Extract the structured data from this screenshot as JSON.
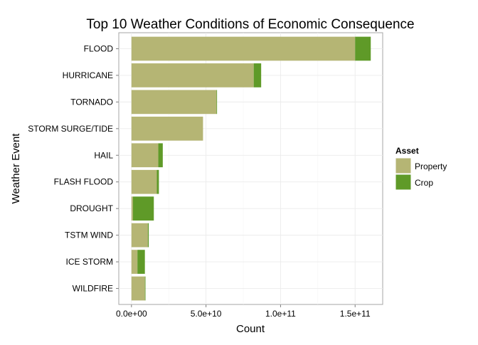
{
  "chart_data": {
    "type": "bar",
    "orientation": "horizontal",
    "stacked": true,
    "title": "Top 10 Weather Conditions of Economic Consequence",
    "xlabel": "Count",
    "ylabel": "Weather Event",
    "categories": [
      "FLOOD",
      "HURRICANE",
      "TORNADO",
      "STORM SURGE/TIDE",
      "HAIL",
      "FLASH FLOOD",
      "DROUGHT",
      "TSTM WIND",
      "ICE STORM",
      "WILDFIRE"
    ],
    "series": [
      {
        "name": "Property",
        "color": "#b5b574",
        "values": [
          150000000000.0,
          82000000000.0,
          57000000000.0,
          48000000000.0,
          18000000000.0,
          17000000000.0,
          1000000000.0,
          11000000000.0,
          4000000000.0,
          9000000000.0
        ]
      },
      {
        "name": "Crop",
        "color": "#5f9a28",
        "values": [
          10500000000.0,
          5000000000.0,
          400000000.0,
          100000.0,
          3000000000.0,
          1400000000.0,
          14000000000.0,
          600000000.0,
          5000000000.0,
          400000000.0
        ]
      }
    ],
    "xlim": [
      -8500000000.0,
      168500000000.0
    ],
    "xticks": [
      0,
      50000000000.0,
      100000000000.0,
      150000000000.0
    ],
    "xtick_labels": [
      "0.0e+00",
      "5.0e+10",
      "1.0e+11",
      "1.5e+11"
    ],
    "grid": true,
    "legend": {
      "title": "Asset",
      "position": "right",
      "entries": [
        "Property",
        "Crop"
      ]
    }
  }
}
